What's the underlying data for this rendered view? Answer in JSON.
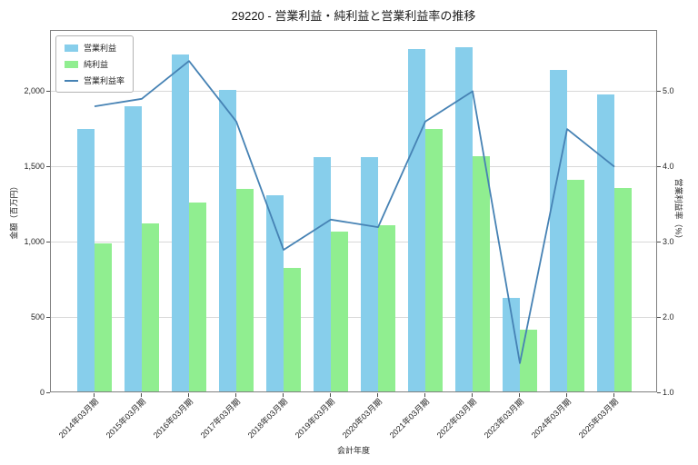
{
  "chart_data": {
    "type": "bar+line",
    "title": "29220 - 営業利益・純利益と営業利益率の推移",
    "xlabel": "会計年度",
    "ylabel_left": "金額（百万円）",
    "ylabel_right": "営業利益率（%）",
    "categories": [
      "2014年03月期",
      "2015年03月期",
      "2016年03月期",
      "2017年03月期",
      "2018年03月期",
      "2019年03月期",
      "2020年03月期",
      "2021年03月期",
      "2022年03月期",
      "2023年03月期",
      "2024年03月期",
      "2025年03月期"
    ],
    "series": [
      {
        "name": "営業利益",
        "type": "bar",
        "axis": "left",
        "color": "#87CEEB",
        "values": [
          1740,
          1890,
          2230,
          2000,
          1300,
          1550,
          1550,
          2270,
          2280,
          620,
          2130,
          1970
        ]
      },
      {
        "name": "純利益",
        "type": "bar",
        "axis": "left",
        "color": "#90EE90",
        "values": [
          980,
          1110,
          1250,
          1340,
          820,
          1060,
          1100,
          1740,
          1560,
          410,
          1400,
          1350
        ]
      },
      {
        "name": "営業利益率",
        "type": "line",
        "axis": "right",
        "color": "#4682B4",
        "values": [
          4.8,
          4.9,
          5.4,
          4.6,
          2.9,
          3.3,
          3.2,
          4.6,
          5.0,
          1.4,
          4.5,
          4.0
        ]
      }
    ],
    "axes": {
      "left": {
        "min": 0,
        "max": 2400,
        "ticks": [
          0,
          500,
          1000,
          1500,
          2000
        ],
        "tick_labels": [
          "0",
          "500",
          "1,000",
          "1,500",
          "2,000"
        ]
      },
      "right": {
        "min": 1.0,
        "max": 5.8,
        "ticks": [
          1.0,
          2.0,
          3.0,
          4.0,
          5.0
        ],
        "tick_labels": [
          "1.0",
          "2.0",
          "3.0",
          "4.0",
          "5.0"
        ]
      }
    },
    "legend": {
      "position": "upper-left",
      "entries": [
        "営業利益",
        "純利益",
        "営業利益率"
      ]
    },
    "grid": "horizontal"
  }
}
